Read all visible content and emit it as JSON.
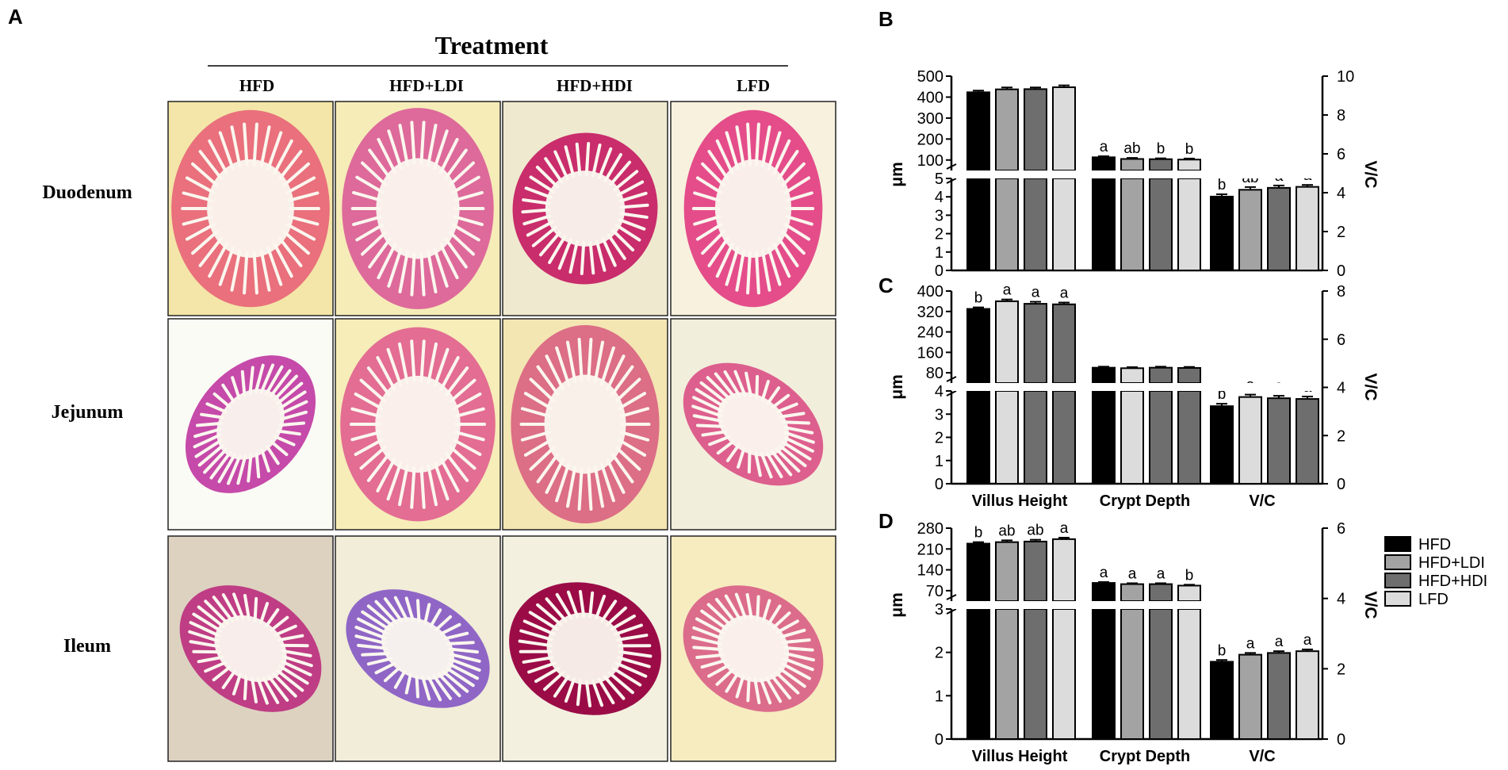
{
  "panels": {
    "a": "A",
    "b": "B",
    "c": "C",
    "d": "D"
  },
  "histology": {
    "heading": "Treatment",
    "columns": [
      "HFD",
      "HFD+LDI",
      "HFD+HDI",
      "LFD"
    ],
    "rows": [
      "Duodenum",
      "Jejunum",
      "Ileum"
    ],
    "backgrounds": [
      [
        "#f3e6a8",
        "#f6ecb8",
        "#efe9cf",
        "#f7f1de"
      ],
      [
        "#fbfbf6",
        "#f6edb8",
        "#f3e6b2",
        "#f2eedc"
      ],
      [
        "#ddd2c0",
        "#f1edd8",
        "#f3f0e0",
        "#f6ecc0"
      ]
    ],
    "tissue_colors": [
      [
        "#e9707c",
        "#dd6a9a",
        "#c92d6b",
        "#e44d8a"
      ],
      [
        "#c54aa9",
        "#e36d93",
        "#dc6e86",
        "#dd5f8d"
      ],
      [
        "#bf3d84",
        "#8f66c6",
        "#9b0c47",
        "#dc6c8b"
      ]
    ]
  },
  "legend": {
    "entries": [
      "HFD",
      "HFD+LDI",
      "HFD+HDI",
      "LFD"
    ],
    "colors": [
      "#000000",
      "#a3a3a3",
      "#6e6e6e",
      "#dcdcdc"
    ]
  },
  "chart_data": [
    {
      "panel": "B",
      "type": "bar",
      "categories": [
        "Villus Height",
        "Crypt Depth",
        "V/C"
      ],
      "show_category_labels": false,
      "series_names": [
        "HFD",
        "HFD+LDI",
        "HFD+HDI",
        "LFD"
      ],
      "values": [
        [
          423,
          437,
          438,
          447
        ],
        [
          113,
          105,
          104,
          102
        ],
        [
          3.8,
          4.15,
          4.25,
          4.3
        ]
      ],
      "errors": [
        [
          8,
          9,
          8,
          9
        ],
        [
          5,
          5,
          4,
          5
        ],
        [
          0.12,
          0.14,
          0.12,
          0.1
        ]
      ],
      "letters": [
        [
          "",
          "",
          "",
          ""
        ],
        [
          "a",
          "ab",
          "b",
          "b"
        ],
        [
          "b",
          "ab",
          "a",
          "a"
        ]
      ],
      "ylabel": "μm",
      "y2label": "V/C",
      "yupper_range": [
        0,
        500
      ],
      "yupper_ticks": [
        100,
        200,
        300,
        400,
        500
      ],
      "ylower_range": [
        0,
        5
      ],
      "ylower_ticks": [
        0,
        1,
        2,
        3,
        4,
        5
      ],
      "y2_range": [
        0,
        10
      ],
      "y2_ticks": [
        0,
        2,
        4,
        6,
        8,
        10
      ],
      "axis_break": true
    },
    {
      "panel": "C",
      "type": "bar",
      "categories": [
        "Villus Height",
        "Crypt Depth",
        "V/C"
      ],
      "show_category_labels": true,
      "series_names": [
        "HFD",
        "HFD+LDI",
        "HFD+HDI",
        "LFD"
      ],
      "values": [
        [
          330,
          360,
          350,
          348
        ],
        [
          100,
          98,
          100,
          99
        ],
        [
          3.22,
          3.6,
          3.55,
          3.52
        ]
      ],
      "errors": [
        [
          6,
          7,
          8,
          7
        ],
        [
          4,
          4,
          4,
          4
        ],
        [
          0.1,
          0.1,
          0.1,
          0.1
        ]
      ],
      "letters": [
        [
          "b",
          "a",
          "a",
          "a"
        ],
        [
          "",
          "",
          "",
          ""
        ],
        [
          "b",
          "a",
          "a",
          "a"
        ]
      ],
      "bar_colors": [
        "#000000",
        "#dcdcdc",
        "#6e6e6e",
        "#6e6e6e"
      ],
      "ylabel": "μm",
      "y2label": "V/C",
      "yupper_range": [
        0,
        400
      ],
      "yupper_ticks": [
        80,
        160,
        240,
        320,
        400
      ],
      "ylower_range": [
        0,
        4
      ],
      "ylower_ticks": [
        0,
        1,
        2,
        3,
        4
      ],
      "y2_range": [
        0,
        8
      ],
      "y2_ticks": [
        0,
        2,
        4,
        6,
        8
      ],
      "axis_break": true
    },
    {
      "panel": "D",
      "type": "bar",
      "categories": [
        "Villus Height",
        "Crypt Depth",
        "V/C"
      ],
      "show_category_labels": true,
      "series_names": [
        "HFD",
        "HFD+LDI",
        "HFD+HDI",
        "LFD"
      ],
      "values": [
        [
          228,
          233,
          235,
          243
        ],
        [
          96,
          92,
          92,
          87
        ],
        [
          2.2,
          2.4,
          2.45,
          2.5
        ]
      ],
      "errors": [
        [
          5,
          6,
          6,
          5
        ],
        [
          3,
          3,
          3,
          3
        ],
        [
          0.05,
          0.05,
          0.05,
          0.05
        ]
      ],
      "letters": [
        [
          "b",
          "ab",
          "ab",
          "a"
        ],
        [
          "a",
          "a",
          "a",
          "b"
        ],
        [
          "b",
          "a",
          "a",
          "a"
        ]
      ],
      "ylabel": "μm",
      "y2label": "V/C",
      "yupper_range": [
        0,
        280
      ],
      "yupper_ticks": [
        70,
        140,
        210,
        280
      ],
      "ylower_range": [
        0,
        3
      ],
      "ylower_ticks": [
        0,
        1,
        2,
        3
      ],
      "y2_range": [
        0,
        6
      ],
      "y2_ticks": [
        0,
        2,
        4,
        6
      ],
      "axis_break": true
    }
  ]
}
